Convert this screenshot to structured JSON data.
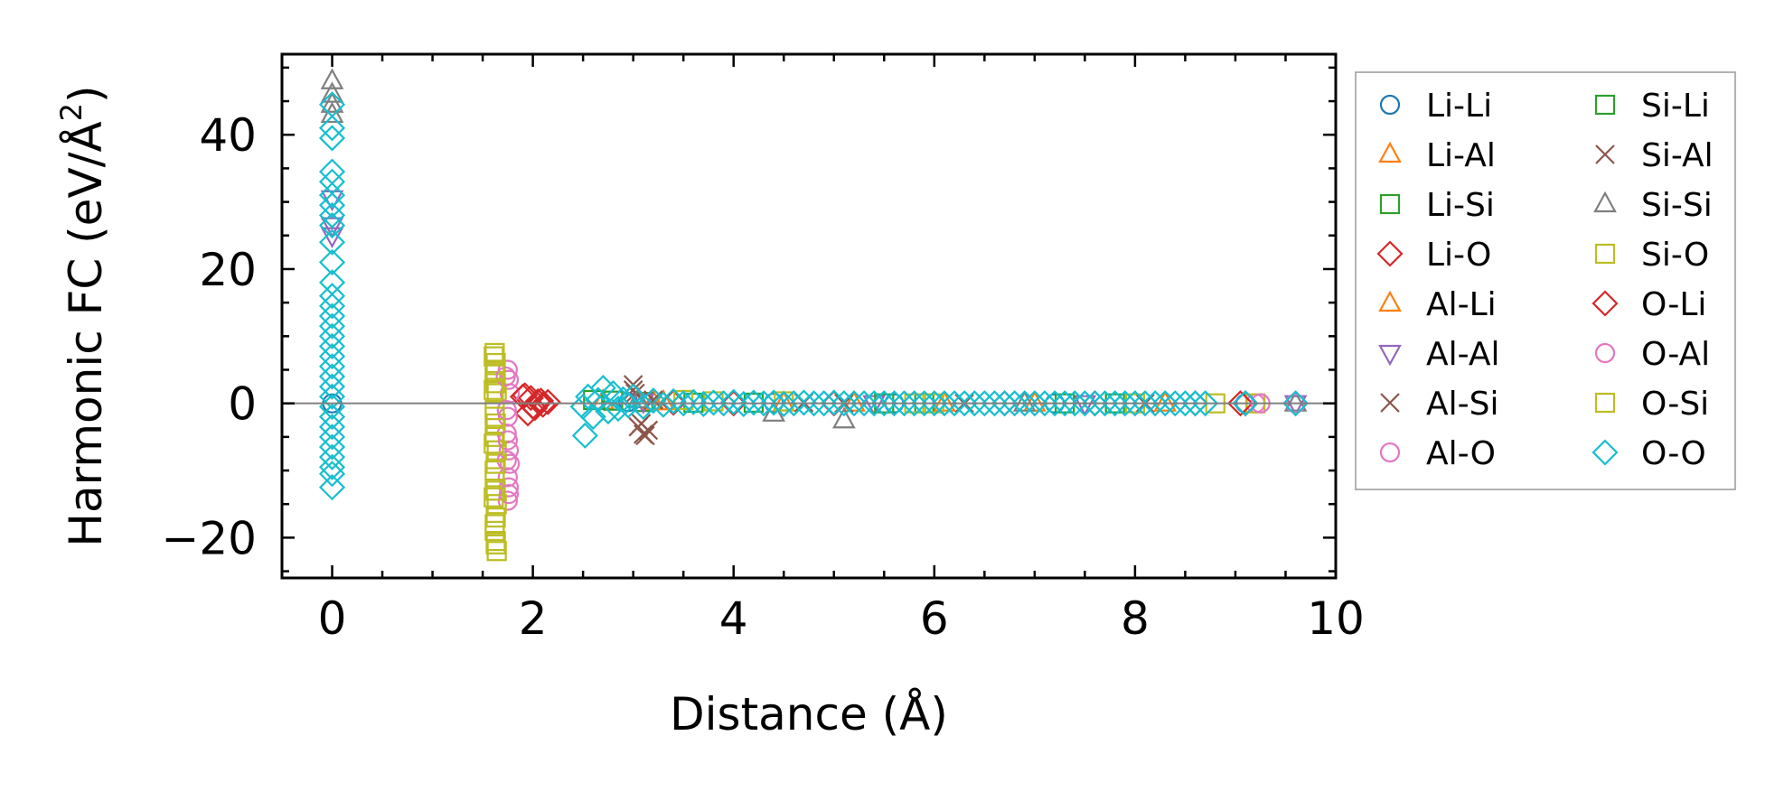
{
  "chart_data": {
    "type": "scatter",
    "title": "",
    "xlabel": "Distance (Å)",
    "ylabel_main": "Harmonic FC (eV/Å",
    "ylabel_sup": "2",
    "ylabel_close": ")",
    "xlim": [
      -0.5,
      10
    ],
    "ylim": [
      -26,
      52
    ],
    "xticks": [
      0,
      2,
      4,
      6,
      8,
      10
    ],
    "xtick_labels": [
      "0",
      "2",
      "4",
      "6",
      "8",
      "10"
    ],
    "yticks": [
      -20,
      0,
      20,
      40
    ],
    "ytick_labels": [
      "−20",
      "0",
      "20",
      "40"
    ],
    "grid": false,
    "zero_line": true,
    "legend_position": "outside-right",
    "legend_columns": 2,
    "series": [
      {
        "name": "Li-Li",
        "marker": "circle",
        "color": "#1f77b4",
        "points": [
          [
            0,
            0.0
          ],
          [
            2.95,
            0.2
          ],
          [
            4.4,
            0.1
          ],
          [
            5.6,
            0.0
          ],
          [
            7.2,
            0.0
          ],
          [
            9.1,
            0.0
          ]
        ]
      },
      {
        "name": "Li-Al",
        "marker": "triangle-up",
        "color": "#ff7f0e",
        "points": [
          [
            2.7,
            0.3
          ],
          [
            3.2,
            0.2
          ],
          [
            4.5,
            0.0
          ],
          [
            6.1,
            0.0
          ],
          [
            8.3,
            0.0
          ]
        ]
      },
      {
        "name": "Li-Si",
        "marker": "square",
        "color": "#2ca02c",
        "points": [
          [
            2.6,
            0.5
          ],
          [
            3.1,
            0.2
          ],
          [
            4.2,
            0.1
          ],
          [
            5.9,
            0.0
          ],
          [
            7.8,
            0.0
          ]
        ]
      },
      {
        "name": "Li-O",
        "marker": "diamond",
        "color": "#d62728",
        "points": [
          [
            1.92,
            1.2
          ],
          [
            1.95,
            -1.5
          ],
          [
            1.98,
            0.8
          ],
          [
            2.02,
            -0.7
          ],
          [
            2.05,
            0.3
          ],
          [
            2.1,
            -0.2
          ],
          [
            2.15,
            0.2
          ],
          [
            3.4,
            0.1
          ],
          [
            5.0,
            0.0
          ],
          [
            6.7,
            0.0
          ],
          [
            8.6,
            0.0
          ],
          [
            9.1,
            0.0
          ]
        ]
      },
      {
        "name": "Al-Li",
        "marker": "triangle-up",
        "color": "#ff7f0e",
        "points": [
          [
            3.3,
            0.2
          ],
          [
            5.2,
            0.0
          ],
          [
            7.0,
            0.0
          ]
        ]
      },
      {
        "name": "Al-Al",
        "marker": "triangle-down",
        "color": "#9467bd",
        "points": [
          [
            0,
            30.5
          ],
          [
            0,
            25.0
          ],
          [
            0,
            26.5
          ],
          [
            3.1,
            0.3
          ],
          [
            5.4,
            0.0
          ],
          [
            7.5,
            0.0
          ],
          [
            9.6,
            0.0
          ]
        ]
      },
      {
        "name": "Al-Si",
        "marker": "x",
        "color": "#8c564b",
        "points": [
          [
            3.0,
            2.8
          ],
          [
            3.05,
            -3.5
          ],
          [
            3.1,
            -4.6
          ],
          [
            3.15,
            -4.0
          ],
          [
            3.02,
            1.5
          ],
          [
            3.2,
            0.5
          ],
          [
            4.7,
            0.1
          ],
          [
            6.3,
            0.0
          ],
          [
            8.1,
            0.0
          ]
        ]
      },
      {
        "name": "Al-O",
        "marker": "circle",
        "color": "#e377c2",
        "points": [
          [
            1.75,
            5.0
          ],
          [
            1.76,
            3.5
          ],
          [
            1.77,
            1.5
          ],
          [
            1.75,
            -2.0
          ],
          [
            1.74,
            -4.5
          ],
          [
            1.76,
            -7.0
          ],
          [
            1.77,
            -9.0
          ],
          [
            1.75,
            -11.0
          ],
          [
            1.76,
            -12.5
          ],
          [
            1.75,
            -14.5
          ],
          [
            9.2,
            0.0
          ]
        ]
      },
      {
        "name": "Si-Li",
        "marker": "square",
        "color": "#2ca02c",
        "points": [
          [
            2.8,
            0.4
          ],
          [
            3.6,
            0.1
          ],
          [
            5.5,
            0.0
          ],
          [
            7.3,
            0.0
          ]
        ]
      },
      {
        "name": "Si-Al",
        "marker": "x",
        "color": "#8c564b",
        "points": [
          [
            3.0,
            2.0
          ],
          [
            3.08,
            -3.0
          ],
          [
            3.12,
            -4.8
          ],
          [
            5.1,
            0.0
          ]
        ]
      },
      {
        "name": "Si-Si",
        "marker": "triangle-up",
        "color": "#7f7f7f",
        "points": [
          [
            0,
            48.0
          ],
          [
            0,
            46.0
          ],
          [
            0,
            44.5
          ],
          [
            0,
            43.0
          ],
          [
            3.05,
            0.5
          ],
          [
            4.4,
            -1.5
          ],
          [
            5.1,
            -2.5
          ],
          [
            6.9,
            0.0
          ],
          [
            9.6,
            0.0
          ]
        ]
      },
      {
        "name": "Si-O",
        "marker": "square",
        "color": "#bcbd22",
        "points": [
          [
            1.62,
            7.5
          ],
          [
            1.63,
            6.0
          ],
          [
            1.62,
            4.5
          ],
          [
            1.63,
            3.0
          ],
          [
            1.64,
            1.5
          ],
          [
            1.62,
            -1.0
          ],
          [
            1.63,
            -3.0
          ],
          [
            1.62,
            -5.0
          ],
          [
            1.64,
            -7.0
          ],
          [
            1.63,
            -9.0
          ],
          [
            1.62,
            -11.0
          ],
          [
            1.63,
            -13.0
          ],
          [
            1.64,
            -15.0
          ],
          [
            1.63,
            -17.0
          ],
          [
            1.62,
            -19.0
          ],
          [
            1.63,
            -21.0
          ],
          [
            1.64,
            -22.0
          ],
          [
            3.5,
            0.5
          ],
          [
            4.5,
            0.3
          ],
          [
            6.0,
            0.0
          ],
          [
            8.0,
            0.0
          ],
          [
            9.2,
            0.0
          ]
        ]
      },
      {
        "name": "O-Li",
        "marker": "diamond",
        "color": "#d62728",
        "points": [
          [
            1.9,
            1.0
          ],
          [
            2.0,
            -0.5
          ],
          [
            2.08,
            0.4
          ],
          [
            4.0,
            0.0
          ],
          [
            7.6,
            0.0
          ],
          [
            9.05,
            0.0
          ]
        ]
      },
      {
        "name": "O-Al",
        "marker": "circle",
        "color": "#e377c2",
        "points": [
          [
            1.73,
            4.0
          ],
          [
            1.74,
            -1.0
          ],
          [
            1.75,
            -5.5
          ],
          [
            1.74,
            -8.5
          ],
          [
            1.76,
            -13.5
          ],
          [
            9.25,
            0.0
          ],
          [
            9.6,
            0.0
          ]
        ]
      },
      {
        "name": "O-Si",
        "marker": "square",
        "color": "#bcbd22",
        "points": [
          [
            1.61,
            7.0
          ],
          [
            1.62,
            5.0
          ],
          [
            1.61,
            2.0
          ],
          [
            1.62,
            -2.0
          ],
          [
            1.61,
            -6.0
          ],
          [
            1.62,
            -10.0
          ],
          [
            1.61,
            -14.0
          ],
          [
            1.62,
            -18.0
          ],
          [
            1.63,
            -20.5
          ],
          [
            3.8,
            0.3
          ],
          [
            5.8,
            0.0
          ],
          [
            8.8,
            0.0
          ]
        ]
      },
      {
        "name": "O-O",
        "marker": "diamond",
        "color": "#17becf",
        "points": [
          [
            0,
            44.5
          ],
          [
            0,
            41.0
          ],
          [
            0,
            39.5
          ],
          [
            0,
            34.5
          ],
          [
            0,
            33.0
          ],
          [
            0,
            31.0
          ],
          [
            0,
            29.5
          ],
          [
            0,
            28.0
          ],
          [
            0,
            26.5
          ],
          [
            0,
            24.0
          ],
          [
            0,
            21.0
          ],
          [
            0,
            18.0
          ],
          [
            0,
            16.0
          ],
          [
            0,
            14.5
          ],
          [
            0,
            13.0
          ],
          [
            0,
            11.5
          ],
          [
            0,
            10.0
          ],
          [
            0,
            8.5
          ],
          [
            0,
            7.0
          ],
          [
            0,
            5.5
          ],
          [
            0,
            4.0
          ],
          [
            0,
            2.5
          ],
          [
            0,
            1.0
          ],
          [
            0,
            -0.5
          ],
          [
            0,
            -2.0
          ],
          [
            0,
            -3.5
          ],
          [
            0,
            -5.0
          ],
          [
            0,
            -6.5
          ],
          [
            0,
            -8.0
          ],
          [
            0,
            -9.5
          ],
          [
            0,
            -10.5
          ],
          [
            0,
            -12.5
          ],
          [
            2.5,
            -0.5
          ],
          [
            2.52,
            -4.8
          ],
          [
            2.55,
            1.0
          ],
          [
            2.6,
            -2.0
          ],
          [
            2.65,
            0.5
          ],
          [
            2.7,
            2.3
          ],
          [
            2.75,
            -1.2
          ],
          [
            2.8,
            1.5
          ],
          [
            2.85,
            -0.8
          ],
          [
            2.9,
            0.6
          ],
          [
            2.95,
            -0.3
          ],
          [
            3.0,
            1.0
          ],
          [
            3.1,
            -0.5
          ],
          [
            3.2,
            0.4
          ],
          [
            3.3,
            -0.2
          ],
          [
            3.4,
            0.3
          ],
          [
            3.5,
            0.0
          ],
          [
            3.6,
            0.2
          ],
          [
            3.7,
            -0.1
          ],
          [
            3.8,
            0.1
          ],
          [
            3.9,
            0.0
          ],
          [
            4.0,
            0.2
          ],
          [
            4.1,
            -0.1
          ],
          [
            4.2,
            0.1
          ],
          [
            4.3,
            0.0
          ],
          [
            4.4,
            0.1
          ],
          [
            4.5,
            -0.1
          ],
          [
            4.6,
            0.0
          ],
          [
            4.7,
            0.1
          ],
          [
            4.8,
            0.0
          ],
          [
            4.9,
            0.0
          ],
          [
            5.0,
            0.1
          ],
          [
            5.1,
            0.0
          ],
          [
            5.2,
            0.0
          ],
          [
            5.3,
            0.0
          ],
          [
            5.4,
            0.0
          ],
          [
            5.5,
            0.0
          ],
          [
            5.6,
            0.0
          ],
          [
            5.7,
            0.0
          ],
          [
            5.8,
            0.0
          ],
          [
            5.9,
            0.0
          ],
          [
            6.0,
            0.0
          ],
          [
            6.1,
            0.0
          ],
          [
            6.2,
            0.0
          ],
          [
            6.3,
            0.0
          ],
          [
            6.4,
            0.0
          ],
          [
            6.5,
            0.0
          ],
          [
            6.6,
            0.0
          ],
          [
            6.7,
            0.0
          ],
          [
            6.8,
            0.0
          ],
          [
            6.9,
            0.0
          ],
          [
            7.0,
            0.0
          ],
          [
            7.1,
            0.0
          ],
          [
            7.2,
            0.0
          ],
          [
            7.3,
            0.0
          ],
          [
            7.4,
            0.0
          ],
          [
            7.5,
            0.0
          ],
          [
            7.6,
            0.0
          ],
          [
            7.7,
            0.0
          ],
          [
            7.8,
            0.0
          ],
          [
            7.9,
            0.0
          ],
          [
            8.0,
            0.0
          ],
          [
            8.1,
            0.0
          ],
          [
            8.2,
            0.0
          ],
          [
            8.3,
            0.0
          ],
          [
            8.4,
            0.0
          ],
          [
            8.5,
            0.0
          ],
          [
            8.6,
            0.0
          ],
          [
            8.7,
            0.0
          ],
          [
            9.1,
            0.0
          ],
          [
            9.6,
            0.0
          ]
        ]
      }
    ]
  }
}
